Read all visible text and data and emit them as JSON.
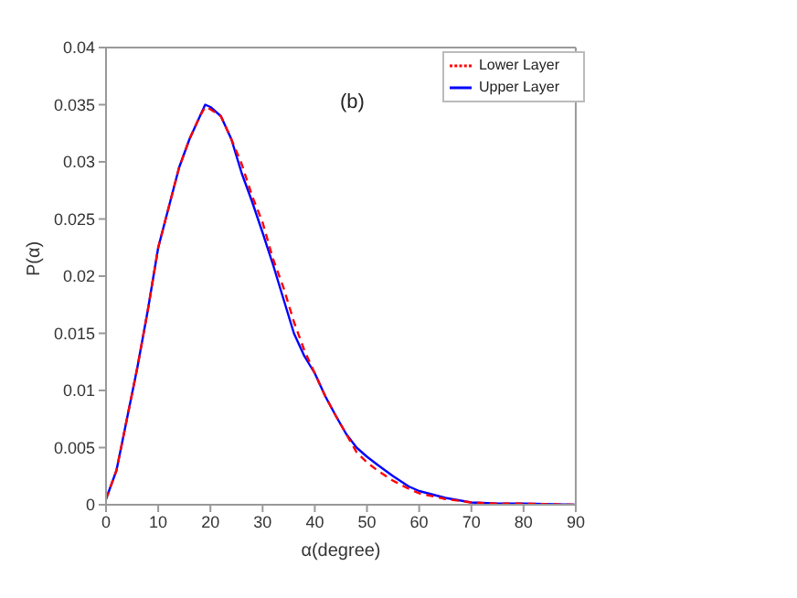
{
  "chart_data": {
    "type": "line",
    "xlabel": "α(degree)",
    "ylabel": "P(α)",
    "annotations": [
      "(b)"
    ],
    "x": [
      0,
      2,
      4,
      6,
      8,
      10,
      12,
      14,
      16,
      18,
      19,
      20,
      22,
      24,
      26,
      28,
      30,
      32,
      34,
      36,
      38,
      40,
      42,
      44,
      46,
      48,
      50,
      52,
      55,
      58,
      60,
      65,
      70,
      75,
      80,
      90
    ],
    "series": [
      {
        "name": "Upper Layer",
        "color": "#0000ff",
        "line_style": "solid",
        "values": [
          0.0005,
          0.003,
          0.0075,
          0.012,
          0.017,
          0.0225,
          0.026,
          0.0295,
          0.032,
          0.034,
          0.035,
          0.0348,
          0.034,
          0.032,
          0.029,
          0.0265,
          0.0238,
          0.021,
          0.018,
          0.015,
          0.013,
          0.0115,
          0.0095,
          0.0078,
          0.0062,
          0.005,
          0.0042,
          0.0035,
          0.0025,
          0.0016,
          0.0012,
          0.0006,
          0.0002,
          0.0001,
          0.0001,
          0
        ]
      },
      {
        "name": "Lower Layer",
        "color": "#ff0000",
        "line_style": "dashed",
        "values": [
          0.0005,
          0.003,
          0.0075,
          0.012,
          0.017,
          0.0225,
          0.026,
          0.0295,
          0.032,
          0.034,
          0.0348,
          0.0346,
          0.034,
          0.032,
          0.0298,
          0.027,
          0.0247,
          0.0215,
          0.019,
          0.016,
          0.0135,
          0.0115,
          0.0095,
          0.0078,
          0.0062,
          0.0046,
          0.0037,
          0.003,
          0.0021,
          0.0014,
          0.001,
          0.0005,
          0.0002,
          0.0001,
          0.0001,
          0
        ]
      }
    ],
    "xlim": [
      0,
      90
    ],
    "xticks": [
      0,
      10,
      20,
      30,
      40,
      50,
      60,
      70,
      80,
      90
    ],
    "ylim": [
      0,
      0.04
    ],
    "yticks": [
      0,
      0.005,
      0.01,
      0.015,
      0.02,
      0.025,
      0.03,
      0.035,
      0.04
    ],
    "grid": false,
    "legend": "top right",
    "marker": "none"
  }
}
